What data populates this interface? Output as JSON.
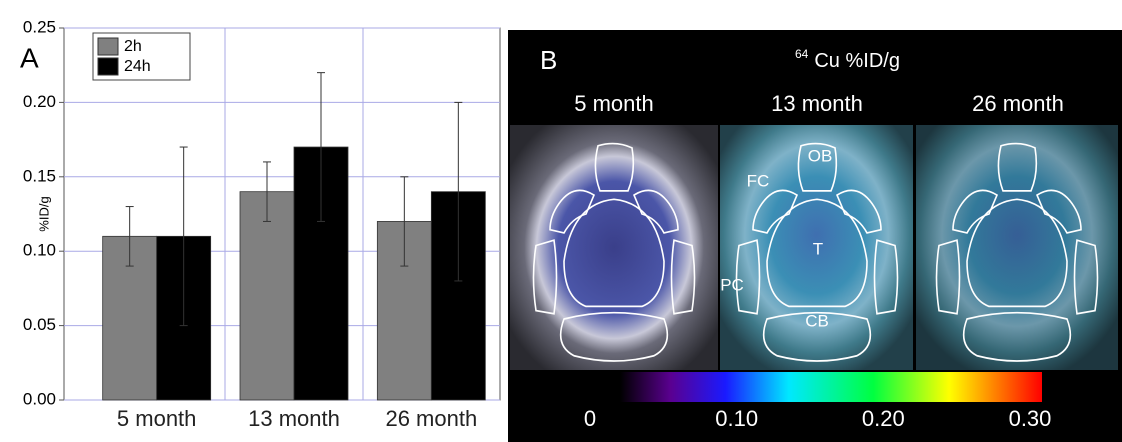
{
  "chart_data": {
    "type": "bar",
    "panel_label": "A",
    "ylabel": "%ID/g",
    "categories": [
      "5 month",
      "13 month",
      "26 month"
    ],
    "series": [
      {
        "name": "2h",
        "color": "#808080",
        "values": [
          0.11,
          0.14,
          0.12
        ],
        "errors": [
          0.02,
          0.02,
          0.03
        ]
      },
      {
        "name": "24h",
        "color": "#000000",
        "values": [
          0.11,
          0.17,
          0.14
        ],
        "errors": [
          0.06,
          0.05,
          0.06
        ]
      }
    ],
    "ylim": [
      0,
      0.25
    ],
    "yticks": [
      {
        "value": 0,
        "label": "0.00"
      },
      0.05,
      {
        "value": 0.1,
        "label": "0.10"
      },
      0.15,
      {
        "value": 0.2,
        "label": "0.20"
      },
      0.25
    ],
    "grid": true,
    "legend": "upper left"
  },
  "panel_b": {
    "panel_label": "B",
    "isotope_mass": "64",
    "title": "Cu %ID/g",
    "columns": [
      "5 month",
      "13 month",
      "26 month"
    ],
    "regions": [
      "OB",
      "FC",
      "T",
      "PC",
      "CB"
    ],
    "colorbar": {
      "lim": [
        0,
        0.3
      ],
      "ticks": [
        0,
        {
          "value": 0.1,
          "label": "0.10"
        },
        {
          "value": 0.2,
          "label": "0.20"
        },
        {
          "value": 0.3,
          "label": "0.30"
        }
      ]
    }
  }
}
